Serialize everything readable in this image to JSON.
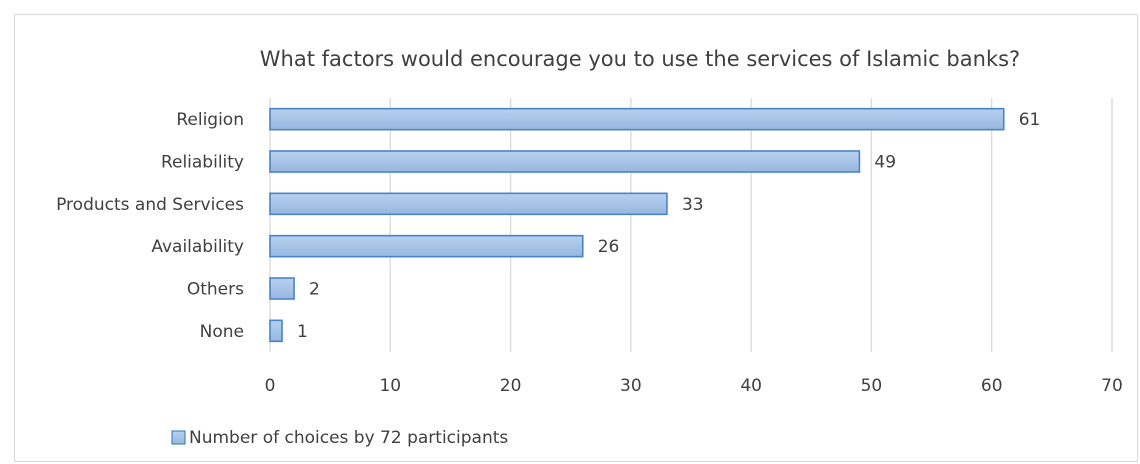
{
  "chart_data": {
    "type": "bar",
    "orientation": "horizontal",
    "title": "What factors would encourage you to use the services of Islamic banks?",
    "categories": [
      "Religion",
      "Reliability",
      "Products and Services",
      "Availability",
      "Others",
      "None"
    ],
    "series": [
      {
        "name": "Number of choices by 72 participants",
        "values": [
          61,
          49,
          33,
          26,
          2,
          1
        ]
      }
    ],
    "xlim": [
      0,
      70
    ],
    "xticks": [
      0,
      10,
      20,
      30,
      40,
      50,
      60,
      70
    ],
    "grid": true,
    "legend_position": "bottom-left",
    "data_labels": true,
    "colors": {
      "bar_fill": "#a9c4e6",
      "bar_stroke": "#4a84c8",
      "text": "#404040",
      "grid": "#d9d9d9"
    }
  }
}
